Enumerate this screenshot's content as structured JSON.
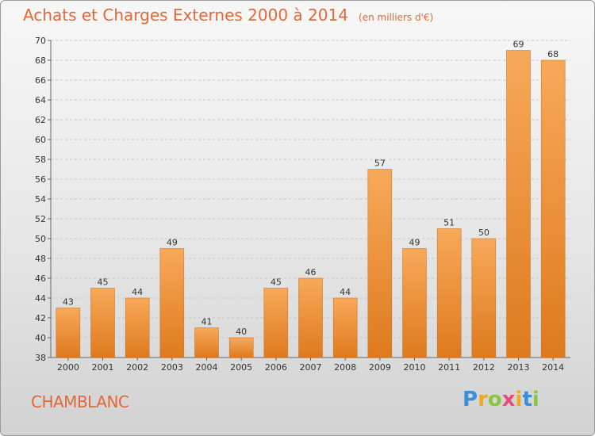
{
  "title": "Achats et Charges Externes 2000 à 2014",
  "subtitle": "(en milliers d'€)",
  "city": "CHAMBLANC",
  "logo": {
    "letters": [
      "P",
      "r",
      "o",
      "x",
      "i",
      "t",
      "i"
    ],
    "colors": [
      "#3a8fd9",
      "#f0a81c",
      "#8cc63f",
      "#e84b7a",
      "#f0a81c",
      "#3a8fd9",
      "#8cc63f"
    ]
  },
  "colors": {
    "bar_light": "#f7a95a",
    "bar_dark": "#de7a1e",
    "accent": "#e2683a"
  },
  "chart_data": {
    "type": "bar",
    "categories": [
      "2000",
      "2001",
      "2002",
      "2003",
      "2004",
      "2005",
      "2006",
      "2007",
      "2008",
      "2009",
      "2010",
      "2011",
      "2012",
      "2013",
      "2014"
    ],
    "values": [
      43,
      45,
      44,
      49,
      41,
      40,
      45,
      46,
      44,
      57,
      49,
      51,
      50,
      69,
      68
    ],
    "ylim": [
      38,
      70
    ],
    "yticks": [
      38,
      40,
      42,
      44,
      46,
      48,
      50,
      52,
      54,
      56,
      58,
      60,
      62,
      64,
      66,
      68,
      70
    ],
    "grid": true
  }
}
